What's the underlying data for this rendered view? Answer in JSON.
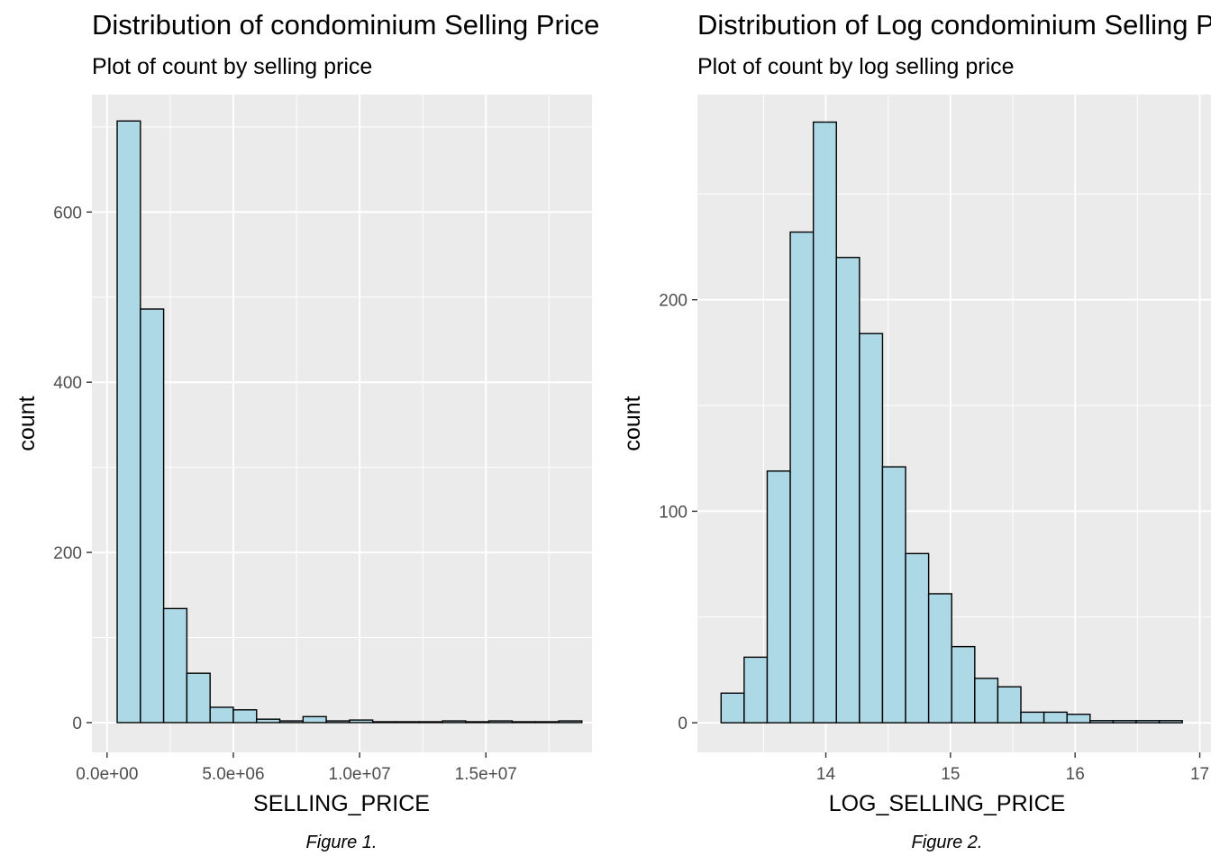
{
  "chart_data": [
    {
      "type": "bar",
      "title": "Distribution of condominium Selling Price",
      "subtitle": "Plot of count by selling price",
      "xlabel": "SELLING_PRICE",
      "ylabel": "count",
      "caption": "Figure 1.",
      "xlim": [
        -600000,
        19200000
      ],
      "ylim": [
        -35,
        738
      ],
      "x_ticks": [
        0,
        5000000,
        10000000,
        15000000
      ],
      "x_tick_labels": [
        "0.0e+00",
        "5.0e+06",
        "1.0e+07",
        "1.5e+07"
      ],
      "y_ticks": [
        0,
        200,
        400,
        600
      ],
      "y_tick_labels": [
        "0",
        "200",
        "400",
        "600"
      ],
      "bin_edges": [
        400000,
        1320000,
        2240000,
        3160000,
        4080000,
        5000000,
        5920000,
        6840000,
        7760000,
        8680000,
        9600000,
        10520000,
        11440000,
        12360000,
        13280000,
        14200000,
        15120000,
        16040000,
        16960000,
        17880000,
        18800000
      ],
      "values": [
        707,
        486,
        134,
        58,
        18,
        15,
        4,
        2,
        7,
        2,
        3,
        1,
        1,
        1,
        2,
        1,
        2,
        1,
        1,
        2
      ],
      "fill": "#add8e6",
      "stroke": "#000000",
      "background": "#ebebeb",
      "grid": true
    },
    {
      "type": "bar",
      "title": "Distribution of Log condominium Selling Price",
      "subtitle": "Plot of count by log selling price",
      "xlabel": "LOG_SELLING_PRICE",
      "ylabel": "count",
      "caption": "Figure 2.",
      "xlim": [
        12.97,
        17.09
      ],
      "ylim": [
        -14,
        297
      ],
      "x_ticks": [
        14,
        15,
        16,
        17
      ],
      "x_tick_labels": [
        "14",
        "15",
        "16",
        "17"
      ],
      "y_ticks": [
        0,
        100,
        200
      ],
      "y_tick_labels": [
        "0",
        "100",
        "200"
      ],
      "bin_edges": [
        13.16,
        13.345,
        13.53,
        13.715,
        13.9,
        14.085,
        14.27,
        14.455,
        14.64,
        14.825,
        15.01,
        15.195,
        15.38,
        15.565,
        15.75,
        15.935,
        16.12,
        16.305,
        16.49,
        16.675,
        16.86
      ],
      "values": [
        14,
        31,
        119,
        232,
        284,
        220,
        184,
        121,
        80,
        61,
        36,
        21,
        17,
        5,
        5,
        4,
        1,
        1,
        1,
        1
      ],
      "fill": "#add8e6",
      "stroke": "#000000",
      "background": "#ebebeb",
      "grid": true
    }
  ]
}
